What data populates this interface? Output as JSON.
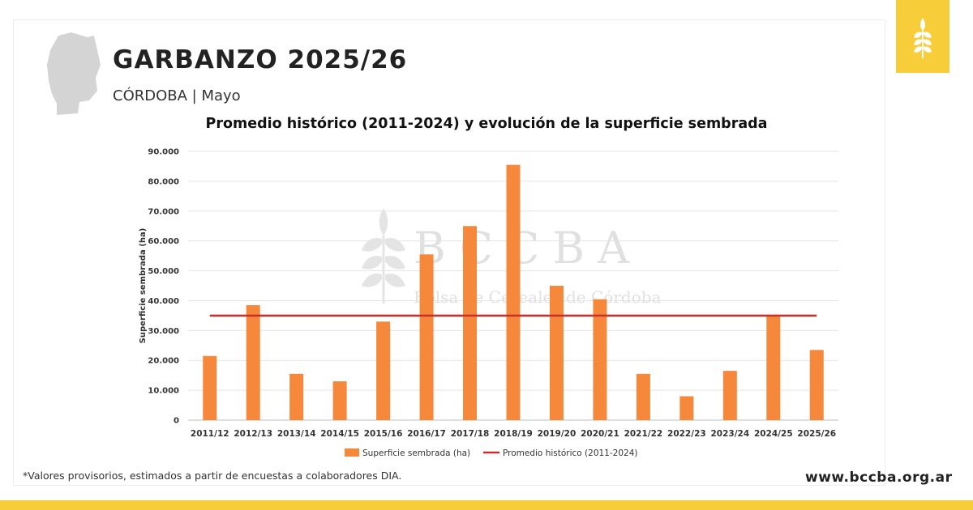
{
  "header": {
    "title": "GARBANZO 2025/26",
    "subtitle": "CÓRDOBA | Mayo"
  },
  "icons": {
    "region_map": "cordoba-province-map-icon",
    "logo": "wheat-icon"
  },
  "colors": {
    "bar": "#f5883a",
    "average_line": "#c9302c",
    "accent_yellow": "#f7cd3a",
    "map_gray": "#d4d4d4"
  },
  "chart_data": {
    "type": "bar",
    "title": "Promedio histórico (2011-2024) y evolución de la superficie sembrada",
    "ylabel": "Superficie sembrada (ha)",
    "xlabel": "",
    "ylim": [
      0,
      90000
    ],
    "yticks": [
      0,
      10000,
      20000,
      30000,
      40000,
      50000,
      60000,
      70000,
      80000,
      90000
    ],
    "ytick_labels": [
      "0",
      "10.000",
      "20.000",
      "30.000",
      "40.000",
      "50.000",
      "60.000",
      "70.000",
      "80.000",
      "90.000"
    ],
    "grid": true,
    "legend_position": "bottom",
    "categories": [
      "2011/12",
      "2012/13",
      "2013/14",
      "2014/15",
      "2015/16",
      "2016/17",
      "2017/18",
      "2018/19",
      "2019/20",
      "2020/21",
      "2021/22",
      "2022/23",
      "2023/24",
      "2024/25",
      "2025/26"
    ],
    "series": [
      {
        "name": "Superficie sembrada (ha)",
        "kind": "bar",
        "values": [
          21500,
          38500,
          15500,
          13000,
          33000,
          55500,
          65000,
          85500,
          45000,
          40500,
          15500,
          8000,
          16500,
          35000,
          23500
        ]
      },
      {
        "name": "Promedio histórico (2011-2024)",
        "kind": "line",
        "value": 35000
      }
    ]
  },
  "watermark": {
    "main": "BCCBA",
    "sub": "Bolsa de Cereales de Córdoba"
  },
  "footer": {
    "footnote": "*Valores provisorios, estimados a partir de encuestas a colaboradores DIA.",
    "website": "www.bccba.org.ar"
  }
}
